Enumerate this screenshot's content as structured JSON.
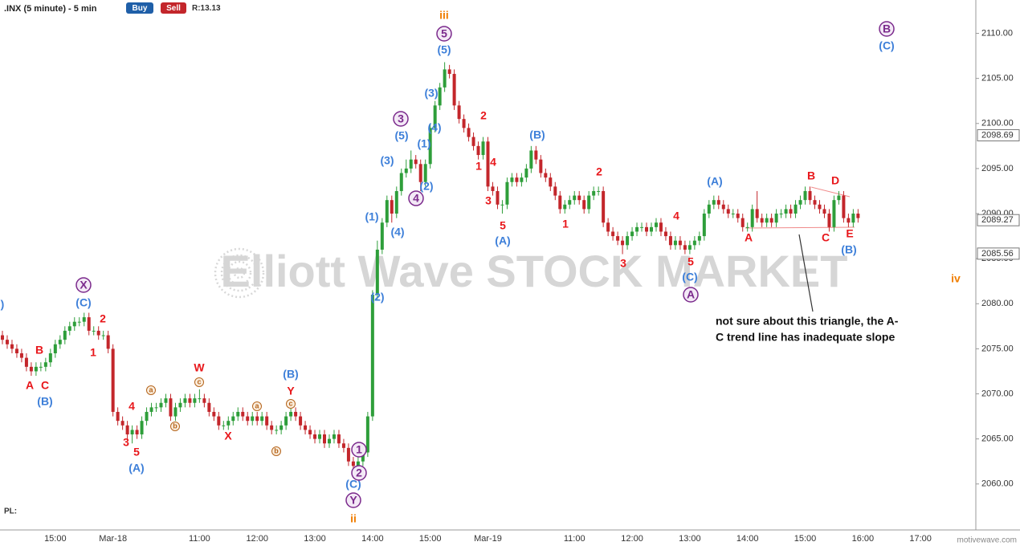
{
  "toolbar": {
    "buttons": [
      "Buy",
      "Sell"
    ],
    "ratio": "R:13.13"
  },
  "footer": {
    "pl": "PL:",
    "brand": "motivewave.com"
  },
  "watermark": "Elliott Wave STOCK MARKET",
  "chart_data": {
    "type": "candlestick",
    "title": ".INX (5 minute) - 5 min",
    "up_color": "#2e9e3a",
    "down_color": "#c3262b",
    "categories": [
      null,
      null,
      null,
      null,
      null,
      null,
      null,
      null,
      null,
      null,
      null,
      "15:00",
      null,
      null,
      null,
      null,
      null,
      null,
      null,
      null,
      null,
      null,
      null,
      "Mar-18",
      null,
      null,
      null,
      null,
      null,
      null,
      null,
      null,
      null,
      null,
      null,
      null,
      null,
      null,
      null,
      null,
      null,
      "11:00",
      null,
      null,
      null,
      null,
      null,
      null,
      null,
      null,
      null,
      null,
      null,
      "12:00",
      null,
      null,
      null,
      null,
      null,
      null,
      null,
      null,
      null,
      null,
      null,
      "13:00",
      null,
      null,
      null,
      null,
      null,
      null,
      null,
      null,
      null,
      null,
      null,
      "14:00",
      null,
      null,
      null,
      null,
      null,
      null,
      null,
      null,
      null,
      null,
      null,
      "15:00",
      null,
      null,
      null,
      null,
      null,
      null,
      null,
      null,
      null,
      null,
      null,
      "Mar-19",
      null,
      null,
      null,
      null,
      null,
      null,
      null,
      null,
      null,
      null,
      null,
      null,
      null,
      null,
      null,
      null,
      null,
      "11:00",
      null,
      null,
      null,
      null,
      null,
      null,
      null,
      null,
      null,
      null,
      null,
      "12:00",
      null,
      null,
      null,
      null,
      null,
      null,
      null,
      null,
      null,
      null,
      null,
      "13:00",
      null,
      null,
      null,
      null,
      null,
      null,
      null,
      null,
      null,
      null,
      null,
      "14:00",
      null,
      null,
      null,
      null,
      null,
      null,
      null,
      null,
      null,
      null,
      null,
      "15:00",
      null,
      null,
      null,
      null,
      null,
      null,
      null,
      null,
      null,
      null,
      null,
      "16:00",
      null,
      null,
      null,
      null,
      null,
      null,
      null,
      null,
      null,
      null,
      null,
      "17:00",
      null,
      null,
      null,
      null,
      null,
      null,
      null,
      null,
      null,
      null,
      null
    ],
    "open": [
      2076.5,
      2076.0,
      2075.5,
      2075.0,
      2074.5,
      2074.0,
      2073.0,
      2072.5,
      2073.0,
      2073.0,
      2073.5,
      2074.5,
      2075.5,
      2076.0,
      2077.0,
      2077.5,
      2078.0,
      2078.0,
      2078.5,
      2077.0,
      2077.0,
      2076.5,
      2076.5,
      2075.0,
      2068.0,
      2067.0,
      2066.5,
      2065.5,
      2066.0,
      2065.5,
      2067.0,
      2068.0,
      2068.5,
      2068.5,
      2069.0,
      2069.5,
      2067.5,
      2068.5,
      2069.0,
      2069.5,
      2069.0,
      2069.5,
      2069.5,
      2069.0,
      2068.0,
      2067.5,
      2066.5,
      2066.5,
      2067.0,
      2067.5,
      2068.0,
      2067.5,
      2067.0,
      2067.5,
      2067.0,
      2067.5,
      2066.5,
      2066.0,
      2066.0,
      2066.5,
      2067.5,
      2068.0,
      2067.5,
      2066.5,
      2066.0,
      2065.5,
      2065.0,
      2065.5,
      2064.5,
      2065.0,
      2065.5,
      2064.5,
      2064.0,
      2062.5,
      2062.0,
      2062.5,
      2063.5,
      2067.5,
      2081.0,
      2086.0,
      2089.0,
      2091.5,
      2090.0,
      2092.5,
      2094.5,
      2095.0,
      2096.0,
      2095.5,
      2093.5,
      2095.5,
      2099.5,
      2102.0,
      2104.0,
      2106.0,
      2105.5,
      2102.0,
      2100.5,
      2099.5,
      2098.5,
      2097.5,
      2096.5,
      2098.0,
      2093.0,
      2092.5,
      2091.0,
      2091.0,
      2093.5,
      2094.0,
      2093.5,
      2094.0,
      2095.0,
      2097.0,
      2096.0,
      2094.5,
      2094.0,
      2093.0,
      2092.0,
      2090.5,
      2091.0,
      2091.5,
      2092.0,
      2091.5,
      2090.5,
      2092.0,
      2092.5,
      2092.5,
      2089.0,
      2088.0,
      2087.5,
      2087.0,
      2086.5,
      2087.5,
      2088.0,
      2088.5,
      2088.5,
      2088.0,
      2088.5,
      2089.0,
      2088.0,
      2087.5,
      2086.5,
      2087.0,
      2086.5,
      2086.0,
      2086.5,
      2087.0,
      2087.5,
      2090.0,
      2091.0,
      2091.5,
      2091.0,
      2090.5,
      2090.0,
      2090.0,
      2089.5,
      2088.5,
      2088.5,
      2090.5,
      2089.5,
      2089.0,
      2089.5,
      2089.0,
      2090.0,
      2090.0,
      2090.5,
      2090.0,
      2091.0,
      2091.5,
      2092.5,
      2091.5,
      2091.0,
      2090.5,
      2090.0,
      2088.5,
      2091.5,
      2092.0,
      2089.5,
      2089.0,
      2090.0,
      null,
      null,
      null,
      null,
      null,
      null,
      null,
      null,
      null,
      null,
      null,
      null,
      null,
      null,
      null,
      null,
      null,
      null,
      null,
      null,
      null,
      null,
      null,
      null
    ],
    "high": [
      2077.0,
      2076.5,
      2076.0,
      2075.5,
      2075.0,
      2074.5,
      2073.5,
      2073.5,
      2073.5,
      2074.0,
      2075.0,
      2076.0,
      2076.5,
      2077.5,
      2078.0,
      2078.5,
      2078.5,
      2079.0,
      2079.0,
      2077.5,
      2077.5,
      2077.0,
      2077.0,
      2075.5,
      2068.5,
      2067.5,
      2067.0,
      2066.5,
      2066.5,
      2067.5,
      2068.5,
      2069.0,
      2069.0,
      2069.5,
      2070.0,
      2070.0,
      2069.0,
      2069.5,
      2070.0,
      2070.0,
      2070.0,
      2070.5,
      2070.0,
      2069.5,
      2068.5,
      2068.0,
      2067.0,
      2067.5,
      2068.0,
      2068.5,
      2068.5,
      2068.0,
      2068.0,
      2068.0,
      2068.0,
      2068.0,
      2067.0,
      2066.5,
      2067.0,
      2068.0,
      2068.5,
      2068.5,
      2068.0,
      2067.0,
      2066.5,
      2066.0,
      2066.0,
      2066.0,
      2065.5,
      2066.0,
      2066.0,
      2065.0,
      2064.5,
      2063.0,
      2063.0,
      2064.0,
      2068.0,
      2081.5,
      2087.0,
      2089.5,
      2092.0,
      2092.0,
      2093.0,
      2095.0,
      2096.0,
      2097.0,
      2096.5,
      2096.0,
      2096.0,
      2100.0,
      2102.5,
      2104.5,
      2106.8,
      2106.5,
      2106.0,
      2102.5,
      2101.0,
      2100.0,
      2099.0,
      2098.0,
      2098.5,
      2098.5,
      2093.5,
      2093.0,
      2091.5,
      2094.0,
      2094.5,
      2094.5,
      2094.5,
      2095.5,
      2097.5,
      2097.5,
      2096.5,
      2095.0,
      2094.5,
      2093.5,
      2092.5,
      2091.5,
      2092.0,
      2092.5,
      2092.5,
      2092.0,
      2092.5,
      2093.0,
      2093.0,
      2093.0,
      2089.5,
      2088.5,
      2088.0,
      2087.5,
      2088.0,
      2088.5,
      2089.0,
      2089.0,
      2089.0,
      2089.0,
      2089.5,
      2089.5,
      2088.5,
      2088.0,
      2087.5,
      2087.5,
      2087.0,
      2087.0,
      2087.5,
      2088.0,
      2090.5,
      2091.5,
      2092.0,
      2092.0,
      2091.5,
      2091.0,
      2090.5,
      2090.5,
      2090.0,
      2089.0,
      2091.0,
      2092.5,
      2090.0,
      2090.0,
      2090.0,
      2090.5,
      2090.5,
      2091.0,
      2091.0,
      2091.5,
      2092.0,
      2093.0,
      2093.0,
      2092.0,
      2091.5,
      2091.0,
      2090.5,
      2092.0,
      2092.5,
      2092.5,
      2090.0,
      2090.5,
      2090.5,
      null,
      null,
      null,
      null,
      null,
      null,
      null,
      null,
      null,
      null,
      null,
      null,
      null,
      null,
      null,
      null,
      null,
      null,
      null,
      null,
      null,
      null,
      null,
      null
    ],
    "low": [
      2075.5,
      2075.0,
      2074.5,
      2074.0,
      2073.5,
      2072.5,
      2072.0,
      2072.0,
      2072.5,
      2072.5,
      2073.0,
      2074.0,
      2075.0,
      2075.5,
      2076.5,
      2077.0,
      2077.5,
      2077.5,
      2076.5,
      2076.5,
      2076.0,
      2076.0,
      2074.5,
      2067.5,
      2066.5,
      2066.0,
      2065.0,
      2064.5,
      2065.0,
      2065.0,
      2066.5,
      2067.5,
      2068.0,
      2068.0,
      2068.5,
      2067.0,
      2067.0,
      2068.0,
      2068.5,
      2068.5,
      2068.5,
      2069.0,
      2068.5,
      2067.5,
      2067.0,
      2066.0,
      2066.0,
      2066.0,
      2066.5,
      2067.0,
      2067.0,
      2066.5,
      2066.5,
      2066.5,
      2066.5,
      2066.0,
      2065.5,
      2065.5,
      2065.5,
      2066.0,
      2067.0,
      2067.0,
      2066.0,
      2065.5,
      2065.0,
      2064.5,
      2064.5,
      2064.0,
      2064.0,
      2064.5,
      2064.0,
      2063.5,
      2062.0,
      2061.5,
      2061.5,
      2062.0,
      2063.0,
      2067.0,
      2080.5,
      2085.5,
      2088.5,
      2089.0,
      2089.5,
      2092.0,
      2094.0,
      2094.5,
      2095.0,
      2092.5,
      2093.0,
      2095.0,
      2099.0,
      2101.5,
      2103.5,
      2105.0,
      2101.5,
      2100.0,
      2099.0,
      2098.0,
      2097.0,
      2096.0,
      2096.0,
      2092.5,
      2092.0,
      2090.5,
      2090.0,
      2090.5,
      2093.0,
      2093.0,
      2093.0,
      2093.5,
      2094.5,
      2095.5,
      2094.0,
      2093.5,
      2092.5,
      2091.5,
      2090.0,
      2090.0,
      2090.5,
      2091.0,
      2091.0,
      2090.0,
      2090.0,
      2091.5,
      2092.0,
      2088.5,
      2087.5,
      2087.0,
      2086.5,
      2085.5,
      2086.0,
      2087.0,
      2087.5,
      2088.0,
      2087.5,
      2087.5,
      2088.0,
      2087.5,
      2087.0,
      2086.0,
      2086.0,
      2086.0,
      2085.5,
      2085.5,
      2086.0,
      2086.5,
      2087.0,
      2089.5,
      2090.5,
      2090.5,
      2090.0,
      2089.5,
      2089.5,
      2089.0,
      2088.0,
      2088.0,
      2088.0,
      2089.0,
      2088.5,
      2088.5,
      2088.5,
      2088.5,
      2089.5,
      2089.5,
      2089.5,
      2089.5,
      2090.5,
      2091.0,
      2091.0,
      2090.5,
      2090.0,
      2089.5,
      2088.0,
      2088.0,
      2091.0,
      2089.0,
      2088.5,
      2088.5,
      2089.0,
      null,
      null,
      null,
      null,
      null,
      null,
      null,
      null,
      null,
      null,
      null,
      null,
      null,
      null,
      null,
      null,
      null,
      null,
      null,
      null,
      null,
      null,
      null,
      null
    ],
    "close": [
      2076.0,
      2075.5,
      2075.0,
      2074.5,
      2074.0,
      2073.0,
      2072.5,
      2073.0,
      2073.0,
      2073.5,
      2074.5,
      2075.5,
      2076.0,
      2077.0,
      2077.5,
      2078.0,
      2078.0,
      2078.5,
      2077.0,
      2077.0,
      2076.5,
      2076.5,
      2075.0,
      2068.0,
      2067.0,
      2066.5,
      2065.5,
      2066.0,
      2065.5,
      2067.0,
      2068.0,
      2068.5,
      2068.5,
      2069.0,
      2069.5,
      2067.5,
      2068.5,
      2069.0,
      2069.5,
      2069.0,
      2069.5,
      2069.5,
      2069.0,
      2068.0,
      2067.5,
      2066.5,
      2066.5,
      2067.0,
      2067.5,
      2068.0,
      2067.5,
      2067.0,
      2067.5,
      2067.0,
      2067.5,
      2066.5,
      2066.0,
      2066.0,
      2066.5,
      2067.5,
      2068.0,
      2067.5,
      2066.5,
      2066.0,
      2065.5,
      2065.0,
      2065.5,
      2064.5,
      2065.0,
      2065.5,
      2064.5,
      2064.0,
      2062.5,
      2062.0,
      2062.5,
      2063.5,
      2067.5,
      2081.0,
      2086.0,
      2089.0,
      2091.5,
      2090.0,
      2092.5,
      2094.5,
      2095.0,
      2096.0,
      2095.5,
      2093.5,
      2095.5,
      2099.5,
      2102.0,
      2104.0,
      2106.0,
      2105.5,
      2102.0,
      2100.5,
      2099.5,
      2098.5,
      2097.5,
      2096.5,
      2098.0,
      2093.0,
      2092.5,
      2091.0,
      2091.0,
      2093.5,
      2094.0,
      2093.5,
      2094.0,
      2095.0,
      2097.0,
      2096.0,
      2094.5,
      2094.0,
      2093.0,
      2092.0,
      2090.5,
      2091.0,
      2091.5,
      2092.0,
      2091.5,
      2090.5,
      2092.0,
      2092.5,
      2092.5,
      2089.0,
      2088.0,
      2087.5,
      2087.0,
      2086.5,
      2087.5,
      2088.0,
      2088.5,
      2088.5,
      2088.0,
      2088.5,
      2089.0,
      2088.0,
      2087.5,
      2086.5,
      2087.0,
      2086.5,
      2086.0,
      2086.5,
      2087.0,
      2087.5,
      2090.0,
      2091.0,
      2091.5,
      2091.0,
      2090.5,
      2090.0,
      2090.0,
      2089.5,
      2088.5,
      2088.5,
      2090.5,
      2089.5,
      2089.0,
      2089.5,
      2089.0,
      2090.0,
      2090.0,
      2090.5,
      2090.0,
      2091.0,
      2091.5,
      2092.5,
      2091.5,
      2091.0,
      2090.5,
      2090.0,
      2088.5,
      2091.5,
      2092.0,
      2089.5,
      2089.0,
      2090.0,
      2089.5,
      null,
      null,
      null,
      null,
      null,
      null,
      null,
      null,
      null,
      null,
      null,
      null,
      null,
      null,
      null,
      null,
      null,
      null,
      null,
      null,
      null,
      null,
      null,
      null
    ],
    "ylim": [
      2054.9,
      2113.7
    ],
    "yticks": [
      {
        "value": 2060,
        "label": "2060.00"
      },
      {
        "value": 2065,
        "label": "2065.00"
      },
      {
        "value": 2070,
        "label": "2070.00"
      },
      {
        "value": 2075,
        "label": "2075.00"
      },
      {
        "value": 2080,
        "label": "2080.00"
      },
      {
        "value": 2085,
        "label": "2085.00"
      },
      {
        "value": 2090,
        "label": "2090.00"
      },
      {
        "value": 2095,
        "label": "2095.00"
      },
      {
        "value": 2100,
        "label": "2100.00"
      },
      {
        "value": 2105,
        "label": "2105.00"
      },
      {
        "value": 2110,
        "label": "2110.00"
      }
    ],
    "price_markers": [
      2098.69,
      2089.27,
      2085.56
    ],
    "grid": false,
    "annotations": [
      {
        "text": "A",
        "color": "#e8171b"
      },
      {
        "text": "B",
        "color": "#e8171b"
      },
      {
        "text": "C",
        "color": "#e8171b"
      },
      {
        "text": "1",
        "color": "#e8171b"
      },
      {
        "text": "2",
        "color": "#e8171b"
      },
      {
        "text": "3",
        "color": "#e8171b"
      },
      {
        "text": "4",
        "color": "#e8171b"
      },
      {
        "text": "5",
        "color": "#e8171b"
      },
      {
        "text": "W",
        "color": "#e8171b"
      },
      {
        "text": "X",
        "color": "#e8171b"
      },
      {
        "text": "Y",
        "color": "#e8171b"
      },
      {
        "text": "1",
        "color": "#e8171b"
      },
      {
        "text": "2",
        "color": "#e8171b"
      },
      {
        "text": "3",
        "color": "#e8171b"
      },
      {
        "text": "4",
        "color": "#e8171b"
      },
      {
        "text": "5",
        "color": "#e8171b"
      },
      {
        "text": "1",
        "color": "#e8171b"
      },
      {
        "text": "2",
        "color": "#e8171b"
      },
      {
        "text": "3",
        "color": "#e8171b"
      },
      {
        "text": "4",
        "color": "#e8171b"
      },
      {
        "text": "5",
        "color": "#e8171b"
      },
      {
        "text": "A",
        "color": "#e8171b"
      },
      {
        "text": "B",
        "color": "#e8171b"
      },
      {
        "text": "C",
        "color": "#e8171b"
      },
      {
        "text": "D",
        "color": "#e8171b"
      },
      {
        "text": "E",
        "color": "#e8171b"
      },
      {
        "text": ")",
        "color": "#3d7fd9"
      },
      {
        "text": "(B)",
        "color": "#3d7fd9"
      },
      {
        "text": "(C)",
        "color": "#3d7fd9"
      },
      {
        "text": "(A)",
        "color": "#3d7fd9"
      },
      {
        "text": "(B)",
        "color": "#3d7fd9"
      },
      {
        "text": "(C)",
        "color": "#3d7fd9"
      },
      {
        "text": "(1)",
        "color": "#3d7fd9"
      },
      {
        "text": "(2)",
        "color": "#3d7fd9"
      },
      {
        "text": "(3)",
        "color": "#3d7fd9"
      },
      {
        "text": "(4)",
        "color": "#3d7fd9"
      },
      {
        "text": "(5)",
        "color": "#3d7fd9"
      },
      {
        "text": "(1)",
        "color": "#3d7fd9"
      },
      {
        "text": "(2)",
        "color": "#3d7fd9"
      },
      {
        "text": "(3)",
        "color": "#3d7fd9"
      },
      {
        "text": "(4)",
        "color": "#3d7fd9"
      },
      {
        "text": "(5)",
        "color": "#3d7fd9"
      },
      {
        "text": "(A)",
        "color": "#3d7fd9"
      },
      {
        "text": "(B)",
        "color": "#3d7fd9"
      },
      {
        "text": "(A)",
        "color": "#3d7fd9"
      },
      {
        "text": "(C)",
        "color": "#3d7fd9"
      },
      {
        "text": "(B)",
        "color": "#3d7fd9"
      },
      {
        "text": "(C)",
        "color": "#3d7fd9"
      },
      {
        "text": "X",
        "color": "#7b2a8c",
        "style": "circled"
      },
      {
        "text": "1",
        "color": "#7b2a8c",
        "style": "circled"
      },
      {
        "text": "2",
        "color": "#7b2a8c",
        "style": "circled"
      },
      {
        "text": "Y",
        "color": "#7b2a8c",
        "style": "circled"
      },
      {
        "text": "3",
        "color": "#7b2a8c",
        "style": "circled"
      },
      {
        "text": "4",
        "color": "#7b2a8c",
        "style": "circled"
      },
      {
        "text": "5",
        "color": "#7b2a8c",
        "style": "circled"
      },
      {
        "text": "A",
        "color": "#7b2a8c",
        "style": "circled"
      },
      {
        "text": "B",
        "color": "#7b2a8c",
        "style": "circled"
      },
      {
        "text": "iii",
        "color": "#f07d00"
      },
      {
        "text": "ii",
        "color": "#f07d00"
      },
      {
        "text": "iv",
        "color": "#f07d00"
      },
      {
        "text": "a",
        "color": "#b5651d",
        "style": "small-circled"
      },
      {
        "text": "b",
        "color": "#b5651d",
        "style": "small-circled"
      },
      {
        "text": "c",
        "color": "#b5651d",
        "style": "small-circled"
      },
      {
        "text": "a",
        "color": "#b5651d",
        "style": "small-circled"
      },
      {
        "text": "b",
        "color": "#b5651d",
        "style": "small-circled"
      },
      {
        "text": "c",
        "color": "#b5651d",
        "style": "small-circled"
      }
    ],
    "note": [
      "not sure about this triangle, the A-",
      "C trend line has inadequate slope"
    ]
  }
}
